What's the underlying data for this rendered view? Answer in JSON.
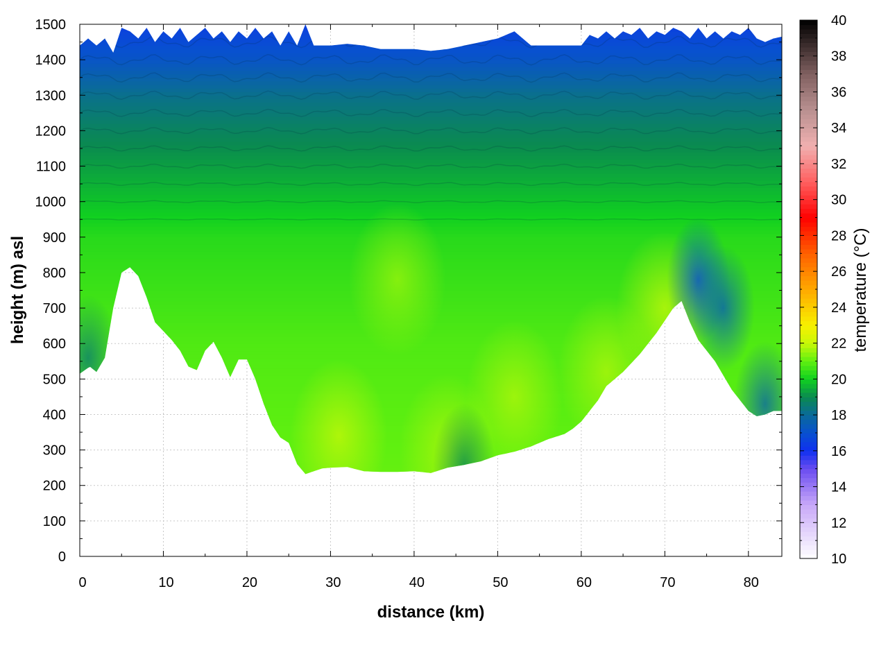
{
  "chart_data": {
    "type": "heatmap",
    "title": "",
    "xlabel": "distance (km)",
    "ylabel": "height (m) asl",
    "xlim": [
      0,
      84
    ],
    "ylim": [
      0,
      1500
    ],
    "xticks": [
      0,
      10,
      20,
      30,
      40,
      50,
      60,
      70,
      80
    ],
    "yticks": [
      0,
      100,
      200,
      300,
      400,
      500,
      600,
      700,
      800,
      900,
      1000,
      1100,
      1200,
      1300,
      1400,
      1500
    ],
    "grid": true,
    "colorbar": {
      "label": "temperature (°C)",
      "range": [
        10,
        40
      ],
      "ticks": [
        10,
        12,
        14,
        16,
        18,
        20,
        22,
        24,
        26,
        28,
        30,
        32,
        34,
        36,
        38,
        40
      ],
      "colors": [
        {
          "v": 10,
          "c": "#ffffff"
        },
        {
          "v": 13,
          "c": "#c8a8f8"
        },
        {
          "v": 15,
          "c": "#6a4cf0"
        },
        {
          "v": 16,
          "c": "#1030f0"
        },
        {
          "v": 17,
          "c": "#0850d0"
        },
        {
          "v": 18,
          "c": "#0a6a9a"
        },
        {
          "v": 19,
          "c": "#0a8a50"
        },
        {
          "v": 20,
          "c": "#10d020"
        },
        {
          "v": 21,
          "c": "#60f010"
        },
        {
          "v": 22,
          "c": "#c8f808"
        },
        {
          "v": 23,
          "c": "#f8f000"
        },
        {
          "v": 25,
          "c": "#ffa800"
        },
        {
          "v": 27,
          "c": "#ff6000"
        },
        {
          "v": 29,
          "c": "#ff0000"
        },
        {
          "v": 31,
          "c": "#ff6060"
        },
        {
          "v": 33,
          "c": "#f0b0b0"
        },
        {
          "v": 35,
          "c": "#b89090"
        },
        {
          "v": 37,
          "c": "#806060"
        },
        {
          "v": 40,
          "c": "#000000"
        }
      ]
    },
    "terrain": [
      [
        0,
        515
      ],
      [
        1.2,
        535
      ],
      [
        2,
        520
      ],
      [
        3,
        560
      ],
      [
        4,
        700
      ],
      [
        5,
        800
      ],
      [
        6,
        815
      ],
      [
        7,
        790
      ],
      [
        8,
        730
      ],
      [
        9,
        660
      ],
      [
        10,
        635
      ],
      [
        11,
        610
      ],
      [
        12,
        580
      ],
      [
        13,
        535
      ],
      [
        14,
        525
      ],
      [
        15,
        580
      ],
      [
        16,
        605
      ],
      [
        17,
        560
      ],
      [
        18,
        505
      ],
      [
        19,
        555
      ],
      [
        20,
        555
      ],
      [
        21,
        500
      ],
      [
        22,
        430
      ],
      [
        23,
        370
      ],
      [
        24,
        335
      ],
      [
        25,
        320
      ],
      [
        26,
        260
      ],
      [
        27,
        232
      ],
      [
        28,
        240
      ],
      [
        29,
        248
      ],
      [
        30,
        250
      ],
      [
        32,
        252
      ],
      [
        34,
        240
      ],
      [
        36,
        238
      ],
      [
        38,
        238
      ],
      [
        40,
        240
      ],
      [
        42,
        235
      ],
      [
        44,
        250
      ],
      [
        46,
        258
      ],
      [
        48,
        268
      ],
      [
        50,
        285
      ],
      [
        52,
        295
      ],
      [
        54,
        310
      ],
      [
        56,
        330
      ],
      [
        58,
        345
      ],
      [
        59,
        360
      ],
      [
        60,
        380
      ],
      [
        61,
        410
      ],
      [
        62,
        440
      ],
      [
        63,
        480
      ],
      [
        64,
        500
      ],
      [
        65,
        520
      ],
      [
        66,
        545
      ],
      [
        67,
        570
      ],
      [
        68,
        600
      ],
      [
        69,
        630
      ],
      [
        70,
        665
      ],
      [
        71,
        700
      ],
      [
        72,
        720
      ],
      [
        73,
        660
      ],
      [
        74,
        610
      ],
      [
        75,
        580
      ],
      [
        76,
        550
      ],
      [
        77,
        510
      ],
      [
        78,
        470
      ],
      [
        79,
        440
      ],
      [
        80,
        410
      ],
      [
        81,
        395
      ],
      [
        82,
        400
      ],
      [
        83,
        410
      ],
      [
        84,
        410
      ]
    ],
    "top": [
      [
        0,
        1440
      ],
      [
        1,
        1460
      ],
      [
        2,
        1440
      ],
      [
        3,
        1460
      ],
      [
        4,
        1420
      ],
      [
        5,
        1490
      ],
      [
        6,
        1480
      ],
      [
        7,
        1460
      ],
      [
        8,
        1490
      ],
      [
        9,
        1450
      ],
      [
        10,
        1480
      ],
      [
        11,
        1460
      ],
      [
        12,
        1490
      ],
      [
        13,
        1450
      ],
      [
        14,
        1470
      ],
      [
        15,
        1490
      ],
      [
        16,
        1460
      ],
      [
        17,
        1480
      ],
      [
        18,
        1450
      ],
      [
        19,
        1480
      ],
      [
        20,
        1460
      ],
      [
        21,
        1490
      ],
      [
        22,
        1460
      ],
      [
        23,
        1480
      ],
      [
        24,
        1440
      ],
      [
        25,
        1480
      ],
      [
        26,
        1440
      ],
      [
        27,
        1500
      ],
      [
        28,
        1440
      ],
      [
        30,
        1440
      ],
      [
        32,
        1445
      ],
      [
        34,
        1440
      ],
      [
        36,
        1430
      ],
      [
        38,
        1430
      ],
      [
        40,
        1430
      ],
      [
        42,
        1425
      ],
      [
        44,
        1430
      ],
      [
        46,
        1440
      ],
      [
        48,
        1450
      ],
      [
        50,
        1460
      ],
      [
        52,
        1480
      ],
      [
        54,
        1440
      ],
      [
        56,
        1440
      ],
      [
        58,
        1440
      ],
      [
        60,
        1440
      ],
      [
        61,
        1470
      ],
      [
        62,
        1460
      ],
      [
        63,
        1480
      ],
      [
        64,
        1460
      ],
      [
        65,
        1480
      ],
      [
        66,
        1470
      ],
      [
        67,
        1490
      ],
      [
        68,
        1460
      ],
      [
        69,
        1480
      ],
      [
        70,
        1470
      ],
      [
        71,
        1490
      ],
      [
        72,
        1480
      ],
      [
        73,
        1460
      ],
      [
        74,
        1490
      ],
      [
        75,
        1460
      ],
      [
        76,
        1480
      ],
      [
        77,
        1460
      ],
      [
        78,
        1480
      ],
      [
        79,
        1470
      ],
      [
        80,
        1490
      ],
      [
        81,
        1460
      ],
      [
        82,
        1450
      ],
      [
        83,
        1460
      ],
      [
        84,
        1465
      ]
    ],
    "temperature_profile": [
      [
        0,
        21.2
      ],
      [
        600,
        20.8
      ],
      [
        900,
        20.3
      ],
      [
        1000,
        19.8
      ],
      [
        1100,
        19.3
      ],
      [
        1200,
        18.8
      ],
      [
        1300,
        18.2
      ],
      [
        1400,
        17.2
      ],
      [
        1500,
        16.5
      ]
    ],
    "warm_spots": [
      {
        "x": 31,
        "y": 340,
        "t": 22.0
      },
      {
        "x": 44,
        "y": 300,
        "t": 21.8
      },
      {
        "x": 52,
        "y": 450,
        "t": 21.8
      },
      {
        "x": 63,
        "y": 520,
        "t": 21.8
      },
      {
        "x": 70,
        "y": 700,
        "t": 22.0
      },
      {
        "x": 38,
        "y": 780,
        "t": 21.6
      }
    ],
    "cool_spots": [
      {
        "x": 74,
        "y": 780,
        "t": 16.8
      },
      {
        "x": 77,
        "y": 700,
        "t": 17.6
      },
      {
        "x": 82,
        "y": 430,
        "t": 17.8
      },
      {
        "x": 1,
        "y": 560,
        "t": 18.6
      },
      {
        "x": 46,
        "y": 255,
        "t": 19.0
      }
    ]
  }
}
